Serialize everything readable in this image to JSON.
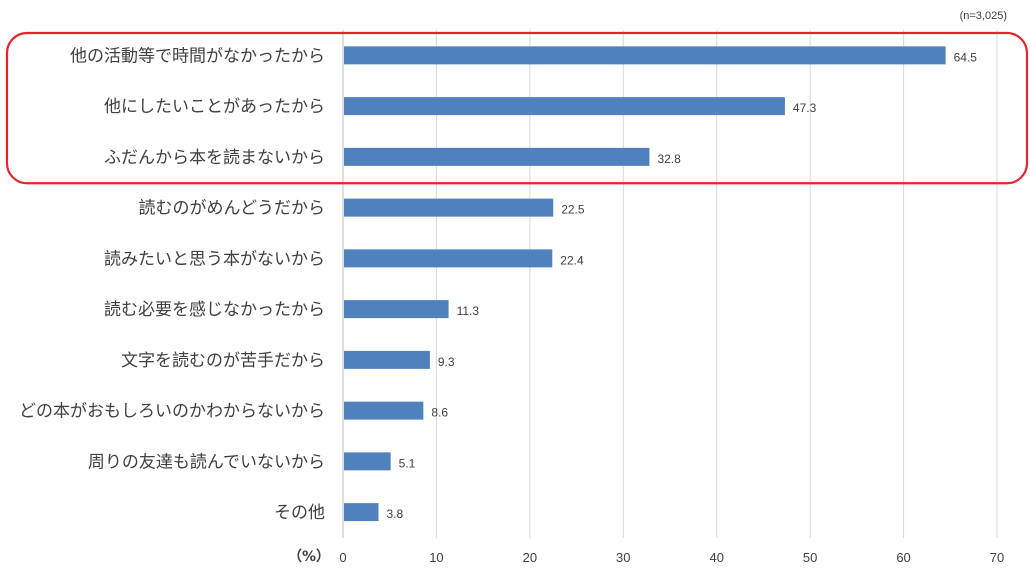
{
  "chart_data": {
    "type": "bar",
    "orientation": "horizontal",
    "sample_note": "(n=3,025)",
    "unit_label": "（%）",
    "categories": [
      "他の活動等で時間がなかったから",
      "他にしたいことがあったから",
      "ふだんから本を読まないから",
      "読むのがめんどうだから",
      "読みたいと思う本がないから",
      "読む必要を感じなかったから",
      "文字を読むのが苦手だから",
      "どの本がおもしろいのかわからないから",
      "周りの友達も読んでいないから",
      "その他"
    ],
    "values": [
      64.5,
      47.3,
      32.8,
      22.5,
      22.4,
      11.3,
      9.3,
      8.6,
      5.1,
      3.8
    ],
    "value_labels": [
      "64.5",
      "47.3",
      "32.8",
      "22.5",
      "22.4",
      "11.3",
      "9.3",
      "8.6",
      "5.1",
      "3.8"
    ],
    "xlim": [
      0,
      70
    ],
    "xticks": [
      0,
      10,
      20,
      30,
      40,
      50,
      60,
      70
    ],
    "xtick_labels": [
      "0",
      "10",
      "20",
      "30",
      "40",
      "50",
      "60",
      "70"
    ],
    "grid": true,
    "highlight": {
      "categories": [
        0,
        1,
        2
      ],
      "color": "#e3262b"
    },
    "colors": {
      "bar": "#4f81bd",
      "grid": "#d9d9d9",
      "text": "#404040"
    }
  }
}
